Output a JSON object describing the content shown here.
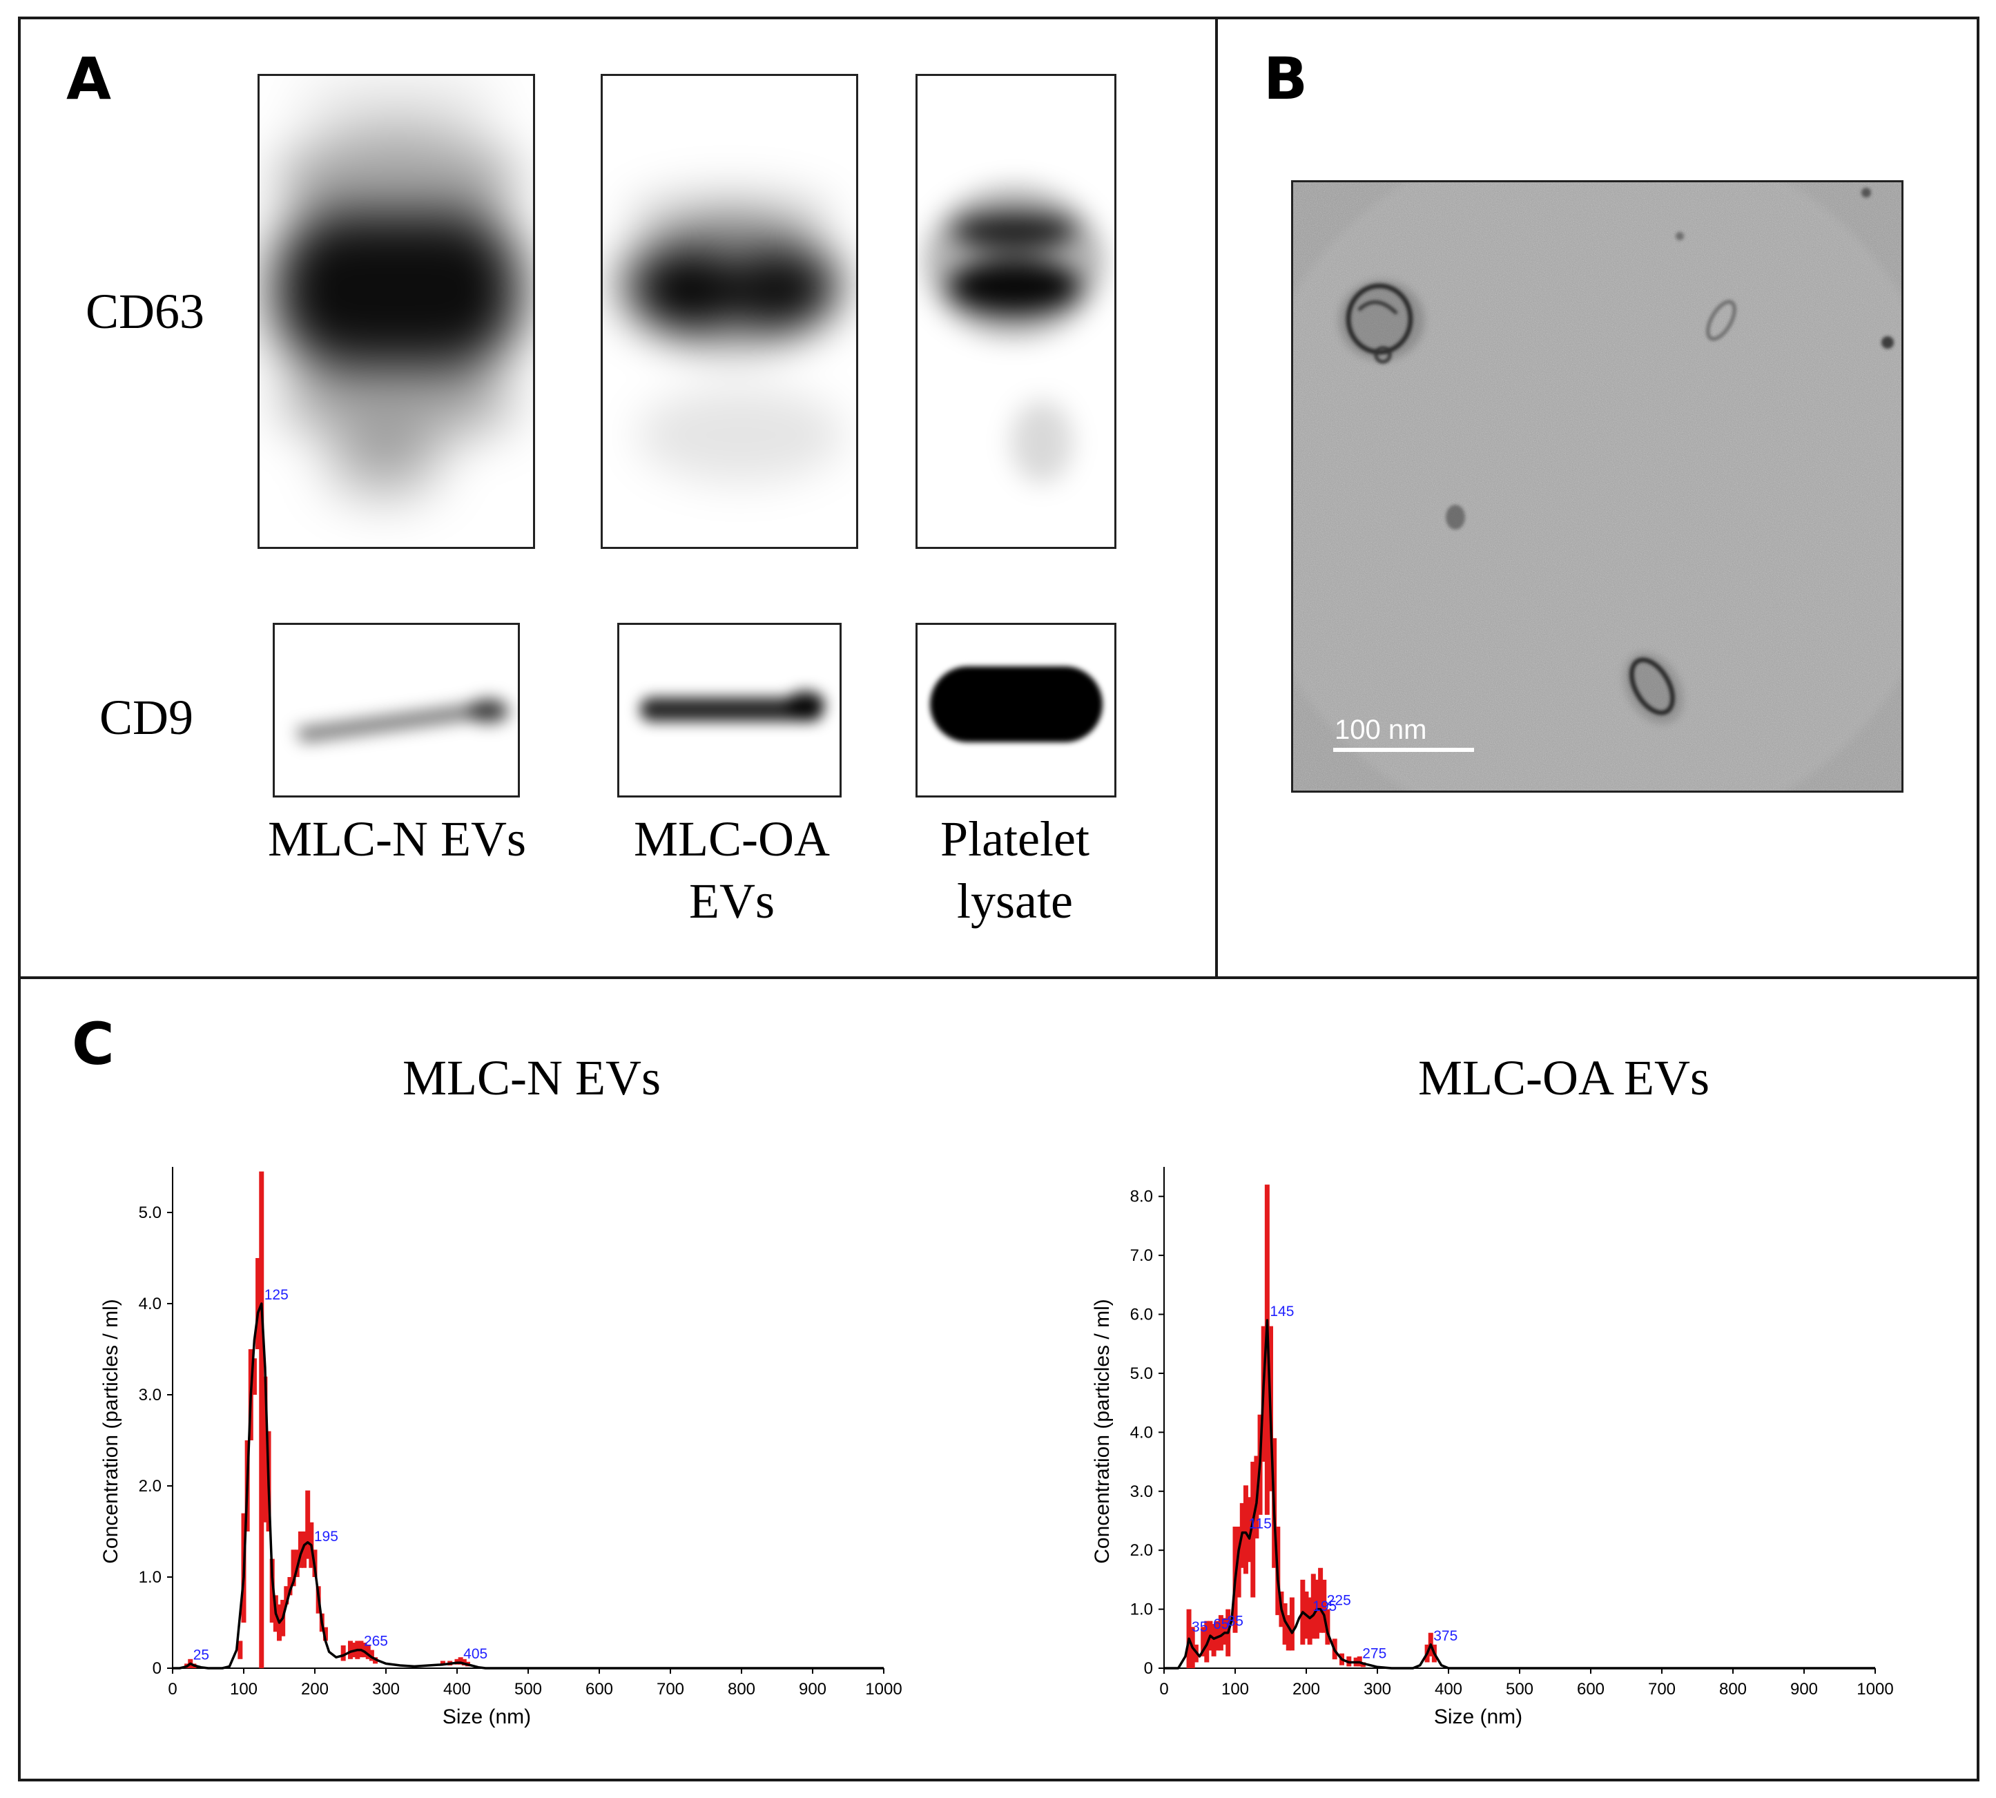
{
  "panels": {
    "a": "A",
    "b": "B",
    "c": "C"
  },
  "panel_a": {
    "rows": [
      "CD63",
      "CD9"
    ],
    "lanes": [
      {
        "line1": "MLC-N EVs",
        "line2": ""
      },
      {
        "line1": "MLC-OA",
        "line2": "EVs"
      },
      {
        "line1": "Platelet",
        "line2": "lysate"
      }
    ]
  },
  "panel_b": {
    "scale_bar": "100 nm"
  },
  "chart_data": [
    {
      "type": "line",
      "title": "MLC-N EVs",
      "xlabel": "Size (nm)",
      "ylabel": "Concentration (particles / ml)",
      "xlim": [
        0,
        1000
      ],
      "ylim": [
        0,
        5.5
      ],
      "xticks": [
        "0",
        "100",
        "200",
        "300",
        "400",
        "500",
        "600",
        "700",
        "800",
        "900",
        "1000"
      ],
      "yticks": [
        "0",
        "1.0",
        "2.0",
        "3.0",
        "4.0",
        "5.0"
      ],
      "peak_labels": [
        {
          "x": 25,
          "y": 0.05,
          "text": "25"
        },
        {
          "x": 125,
          "y": 4.0,
          "text": "125"
        },
        {
          "x": 195,
          "y": 1.35,
          "text": "195"
        },
        {
          "x": 265,
          "y": 0.2,
          "text": "265"
        },
        {
          "x": 405,
          "y": 0.06,
          "text": "405"
        }
      ],
      "series": [
        {
          "values_x": [
            0,
            10,
            20,
            25,
            30,
            40,
            50,
            60,
            70,
            80,
            90,
            100,
            105,
            110,
            115,
            120,
            125,
            130,
            135,
            140,
            145,
            150,
            155,
            160,
            165,
            170,
            175,
            180,
            185,
            190,
            195,
            200,
            205,
            210,
            215,
            220,
            230,
            240,
            250,
            260,
            265,
            270,
            280,
            290,
            300,
            320,
            340,
            360,
            380,
            400,
            405,
            410,
            420,
            430,
            440,
            450,
            500,
            600,
            700,
            800,
            900,
            1000
          ],
          "values_y": [
            0,
            0,
            0.02,
            0.05,
            0.03,
            0.01,
            0,
            0,
            0,
            0.02,
            0.2,
            1.0,
            2.0,
            3.0,
            3.6,
            3.9,
            4.0,
            3.3,
            2.0,
            1.0,
            0.6,
            0.5,
            0.55,
            0.7,
            0.85,
            0.95,
            1.1,
            1.25,
            1.35,
            1.38,
            1.35,
            1.1,
            0.8,
            0.5,
            0.3,
            0.18,
            0.12,
            0.14,
            0.18,
            0.2,
            0.2,
            0.18,
            0.12,
            0.08,
            0.05,
            0.03,
            0.02,
            0.03,
            0.04,
            0.06,
            0.06,
            0.05,
            0.03,
            0.01,
            0,
            0,
            0,
            0,
            0,
            0,
            0,
            0
          ]
        },
        {
          "bars_x": [
            20,
            25,
            30,
            95,
            100,
            105,
            110,
            115,
            120,
            125,
            130,
            135,
            140,
            145,
            150,
            155,
            160,
            165,
            170,
            175,
            180,
            185,
            190,
            195,
            200,
            205,
            210,
            215,
            240,
            250,
            255,
            260,
            265,
            270,
            275,
            280,
            285,
            380,
            390,
            400,
            405,
            410,
            415
          ],
          "bars_lo": [
            0,
            0,
            0,
            0.1,
            0.5,
            1.5,
            2.5,
            3.0,
            3.5,
            0.0,
            1.6,
            1.5,
            0.5,
            0.4,
            0.3,
            0.35,
            0.7,
            0.8,
            0.9,
            1.0,
            1.1,
            1.1,
            1.2,
            1.1,
            1.0,
            0.6,
            0.4,
            0.3,
            0.08,
            0.1,
            0.12,
            0.1,
            0.12,
            0.12,
            0.1,
            0.08,
            0.05,
            0.03,
            0.03,
            0.04,
            0.04,
            0.03,
            0.02
          ],
          "bars_hi": [
            0.05,
            0.1,
            0.05,
            0.3,
            1.7,
            2.5,
            3.5,
            3.4,
            4.5,
            5.45,
            3.2,
            2.6,
            1.2,
            0.8,
            0.7,
            0.75,
            0.9,
            1.0,
            1.3,
            1.3,
            1.5,
            1.5,
            1.95,
            1.6,
            1.3,
            0.9,
            0.6,
            0.45,
            0.25,
            0.3,
            0.28,
            0.3,
            0.3,
            0.28,
            0.25,
            0.2,
            0.12,
            0.08,
            0.08,
            0.1,
            0.12,
            0.1,
            0.07
          ]
        }
      ]
    },
    {
      "type": "line",
      "title": "MLC-OA EVs",
      "xlabel": "Size (nm)",
      "ylabel": "Concentration (particles / ml)",
      "xlim": [
        0,
        1000
      ],
      "ylim": [
        0,
        8.5
      ],
      "xticks": [
        "0",
        "100",
        "200",
        "300",
        "400",
        "500",
        "600",
        "700",
        "800",
        "900",
        "1000"
      ],
      "yticks": [
        "0",
        "1.0",
        "2.0",
        "3.0",
        "4.0",
        "5.0",
        "6.0",
        "7.0",
        "8.0"
      ],
      "peak_labels": [
        {
          "x": 35,
          "y": 0.55,
          "text": "35"
        },
        {
          "x": 65,
          "y": 0.6,
          "text": "65"
        },
        {
          "x": 85,
          "y": 0.65,
          "text": "85"
        },
        {
          "x": 115,
          "y": 2.3,
          "text": "115"
        },
        {
          "x": 145,
          "y": 5.9,
          "text": "145"
        },
        {
          "x": 205,
          "y": 0.9,
          "text": "195"
        },
        {
          "x": 225,
          "y": 1.0,
          "text": "225"
        },
        {
          "x": 275,
          "y": 0.1,
          "text": "275"
        },
        {
          "x": 375,
          "y": 0.4,
          "text": "375"
        }
      ],
      "series": [
        {
          "values_x": [
            0,
            10,
            20,
            30,
            35,
            40,
            50,
            60,
            65,
            70,
            80,
            85,
            90,
            95,
            100,
            105,
            110,
            115,
            120,
            125,
            130,
            135,
            140,
            145,
            150,
            155,
            160,
            165,
            170,
            175,
            180,
            185,
            190,
            195,
            200,
            205,
            210,
            215,
            220,
            225,
            230,
            240,
            250,
            260,
            270,
            275,
            280,
            290,
            300,
            320,
            340,
            350,
            360,
            370,
            375,
            380,
            390,
            400,
            500,
            600,
            700,
            800,
            900,
            1000
          ],
          "values_y": [
            0,
            0,
            0,
            0.2,
            0.5,
            0.35,
            0.2,
            0.4,
            0.55,
            0.5,
            0.55,
            0.6,
            0.6,
            0.8,
            1.5,
            2.0,
            2.3,
            2.3,
            2.2,
            2.5,
            2.8,
            3.5,
            4.8,
            5.9,
            4.2,
            2.6,
            1.5,
            1.0,
            0.8,
            0.7,
            0.6,
            0.7,
            0.85,
            0.95,
            0.9,
            0.85,
            0.9,
            1.0,
            1.0,
            0.9,
            0.6,
            0.3,
            0.15,
            0.1,
            0.1,
            0.1,
            0.08,
            0.05,
            0.02,
            0,
            0,
            0,
            0.05,
            0.25,
            0.4,
            0.25,
            0.05,
            0,
            0,
            0,
            0,
            0,
            0,
            0
          ]
        },
        {
          "bars_x": [
            35,
            40,
            45,
            55,
            60,
            65,
            70,
            75,
            80,
            85,
            90,
            100,
            105,
            110,
            115,
            120,
            125,
            130,
            135,
            140,
            145,
            150,
            155,
            160,
            165,
            170,
            175,
            180,
            195,
            200,
            205,
            210,
            215,
            220,
            225,
            230,
            240,
            250,
            260,
            270,
            275,
            280,
            370,
            375,
            380
          ],
          "bars_lo": [
            0,
            0,
            0.1,
            0.2,
            0.1,
            0.3,
            0.2,
            0.3,
            0.3,
            0.4,
            0.2,
            0.6,
            1.2,
            1.7,
            1.6,
            1.8,
            1.2,
            2.2,
            2.6,
            3.5,
            2.6,
            3.0,
            1.7,
            0.9,
            0.7,
            0.4,
            0.3,
            0.3,
            0.4,
            0.5,
            0.4,
            0.5,
            0.5,
            0.6,
            0.6,
            0.4,
            0.15,
            0.05,
            0.03,
            0.03,
            0.03,
            0.02,
            0.1,
            0.2,
            0.1
          ],
          "bars_hi": [
            1.0,
            0.7,
            0.4,
            0.7,
            0.8,
            0.8,
            0.75,
            0.8,
            0.9,
            0.85,
            1.0,
            2.4,
            2.4,
            2.8,
            3.1,
            2.9,
            3.5,
            3.6,
            4.3,
            5.8,
            8.2,
            5.8,
            3.9,
            2.4,
            1.3,
            1.1,
            0.9,
            1.2,
            1.5,
            1.3,
            1.2,
            1.6,
            1.5,
            1.7,
            1.5,
            1.0,
            0.5,
            0.25,
            0.2,
            0.18,
            0.2,
            0.1,
            0.4,
            0.6,
            0.4
          ]
        }
      ]
    }
  ]
}
